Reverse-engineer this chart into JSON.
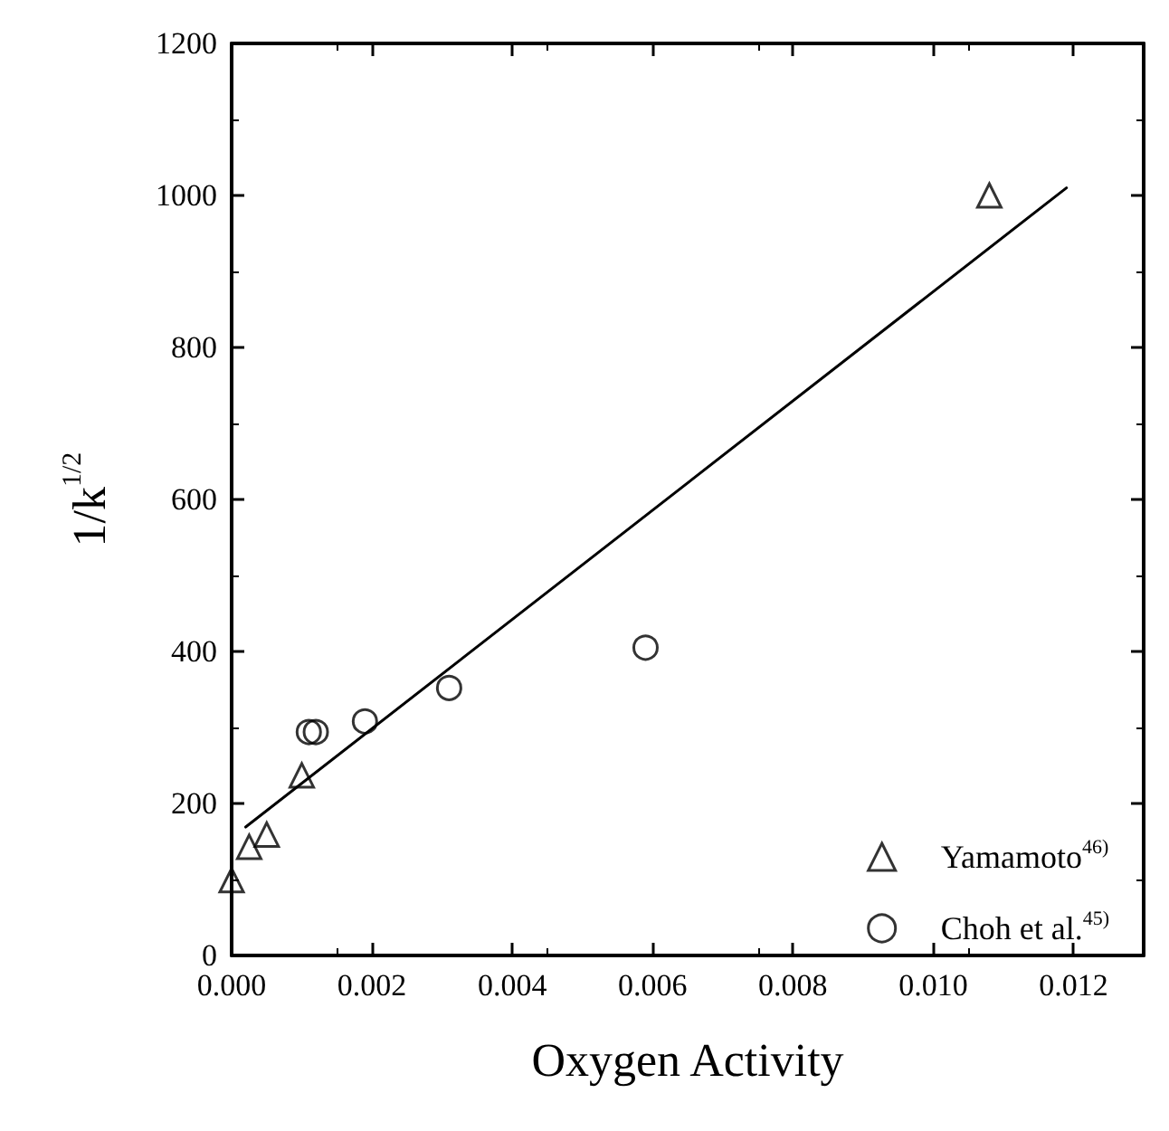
{
  "chart_data": {
    "type": "scatter",
    "xlabel": "Oxygen Activity",
    "ylabel": "1/k$^{1/2}$",
    "xlim": [
      0,
      0.013
    ],
    "ylim": [
      0,
      1200
    ],
    "xticks": [
      {
        "value": 0,
        "label": "0.000"
      },
      {
        "value": 0.002,
        "label": "0.002"
      },
      {
        "value": 0.004,
        "label": "0.004"
      },
      {
        "value": 0.006,
        "label": "0.006"
      },
      {
        "value": 0.008,
        "label": "0.008"
      },
      {
        "value": 0.01,
        "label": "0.010"
      },
      {
        "value": 0.012,
        "label": "0.012"
      }
    ],
    "yticks": [
      0,
      200,
      400,
      600,
      800,
      1000,
      1200
    ],
    "legend": "bottom right",
    "grid": false,
    "series": [
      {
        "name": "Yamamoto$^{46)}$",
        "color": "#000000",
        "marker": "triangle",
        "x": [
          0.0,
          0.00025,
          0.0005,
          0.001,
          0.0108
        ],
        "values": [
          99,
          143,
          159,
          237,
          1000
        ]
      },
      {
        "name": "Choh et al.$^{45)}$",
        "color": "#000000",
        "marker": "circle",
        "x": [
          0.0011,
          0.0012,
          0.0019,
          0.0031,
          0.0059
        ],
        "values": [
          294,
          294,
          308,
          352,
          405
        ]
      },
      {
        "type": "line",
        "color": "#000000",
        "marker": "none",
        "line_style": "solid",
        "x": [
          0.0002,
          0.0119
        ],
        "values": [
          169,
          1010
        ]
      }
    ]
  }
}
